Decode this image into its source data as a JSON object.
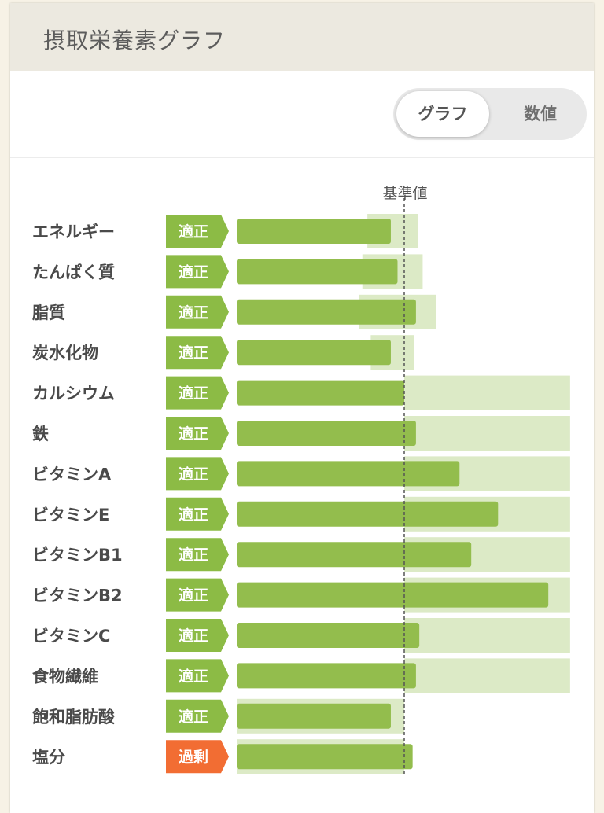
{
  "header": {
    "title": "摂取栄養素グラフ"
  },
  "toggle": {
    "graph_label": "グラフ",
    "values_label": "数値",
    "selected": "グラフ"
  },
  "colors": {
    "bar": "#93bd4d",
    "range": "#dceac6",
    "badge_ok": "#8cbb45",
    "badge_excess": "#f26d33"
  },
  "chart_data": {
    "type": "bar",
    "orientation": "horizontal",
    "reference_label": "基準値",
    "reference_value": 100,
    "categories": [
      "エネルギー",
      "たんぱく質",
      "脂質",
      "炭水化物",
      "カルシウム",
      "鉄",
      "ビタミンA",
      "ビタミンE",
      "ビタミンB1",
      "ビタミンB2",
      "ビタミンC",
      "食物繊維",
      "飽和脂肪酸",
      "塩分"
    ],
    "statuses": [
      "適正",
      "適正",
      "適正",
      "適正",
      "適正",
      "適正",
      "適正",
      "適正",
      "適正",
      "適正",
      "適正",
      "適正",
      "適正",
      "過剰"
    ],
    "values": [
      92,
      96,
      107,
      92,
      100,
      107,
      133,
      156,
      140,
      186,
      109,
      107,
      92,
      105
    ],
    "range_min": [
      78,
      75,
      73,
      80,
      100,
      100,
      100,
      100,
      100,
      100,
      100,
      100,
      0,
      0
    ],
    "range_max": [
      108,
      111,
      119,
      106,
      199,
      199,
      199,
      199,
      199,
      199,
      199,
      199,
      100,
      100
    ]
  }
}
